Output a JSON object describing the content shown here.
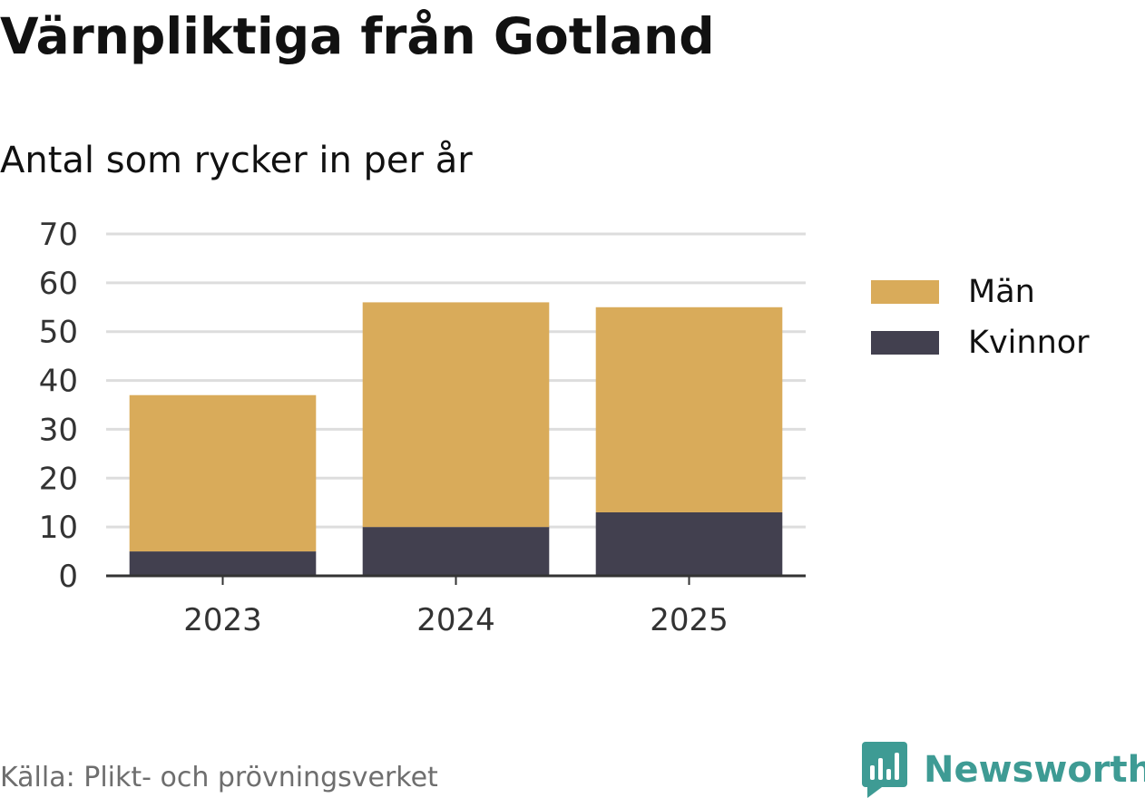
{
  "header": {
    "title": "Värnpliktiga från Gotland",
    "subtitle": "Antal som rycker in per år"
  },
  "chart_data": {
    "type": "bar",
    "stacked": true,
    "title": "Värnpliktiga från Gotland",
    "subtitle": "Antal som rycker in per år",
    "xlabel": "",
    "ylabel": "",
    "categories": [
      "2023",
      "2024",
      "2025"
    ],
    "series": [
      {
        "name": "Kvinnor",
        "values": [
          5,
          10,
          13
        ],
        "color": "#42404f"
      },
      {
        "name": "Män",
        "values": [
          32,
          46,
          42
        ],
        "color": "#d9ab5a"
      }
    ],
    "ylim": [
      0,
      70
    ],
    "yticks": [
      0,
      10,
      20,
      30,
      40,
      50,
      60,
      70
    ],
    "grid": true,
    "legend_position": "right"
  },
  "legend": {
    "items": [
      {
        "label": "Män",
        "color": "#d9ab5a"
      },
      {
        "label": "Kvinnor",
        "color": "#42404f"
      }
    ]
  },
  "footer": {
    "source": "Källa: Plikt- och prövningsverket",
    "brand": "Newsworthy",
    "brand_color": "#3e9b94",
    "brand_icon": "newsworthy-logo-icon"
  }
}
